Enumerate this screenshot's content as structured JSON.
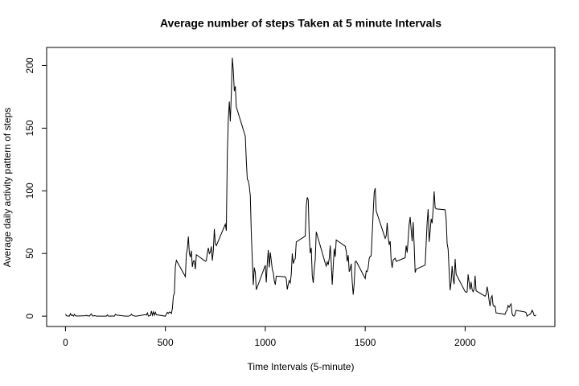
{
  "chart_data": {
    "type": "line",
    "title": "Average number of steps Taken at 5 minute Intervals",
    "x_label": "Time Intervals (5-minute)",
    "y_label": "Average daily activity pattern of steps",
    "color": "#000000",
    "xlim": [
      -94.2,
      2449.2
    ],
    "xticks": [
      0,
      500,
      1000,
      1500,
      2000
    ],
    "ylim": [
      -8.25,
      214.4
    ],
    "yticks": [
      0,
      50,
      100,
      150,
      200
    ],
    "x": [
      0,
      5,
      10,
      15,
      20,
      25,
      30,
      35,
      40,
      45,
      50,
      55,
      100,
      105,
      110,
      115,
      120,
      125,
      130,
      135,
      140,
      145,
      150,
      155,
      200,
      205,
      210,
      215,
      220,
      225,
      230,
      235,
      240,
      245,
      250,
      255,
      300,
      305,
      310,
      315,
      320,
      325,
      330,
      335,
      340,
      345,
      350,
      355,
      400,
      405,
      410,
      415,
      420,
      425,
      430,
      435,
      440,
      445,
      450,
      455,
      500,
      505,
      510,
      515,
      520,
      525,
      530,
      535,
      540,
      545,
      550,
      555,
      600,
      605,
      610,
      615,
      620,
      625,
      630,
      635,
      640,
      645,
      650,
      655,
      700,
      705,
      710,
      715,
      720,
      725,
      730,
      735,
      740,
      745,
      750,
      755,
      800,
      805,
      810,
      815,
      820,
      825,
      830,
      835,
      840,
      845,
      850,
      855,
      900,
      905,
      910,
      915,
      920,
      925,
      930,
      935,
      940,
      945,
      950,
      955,
      1000,
      1005,
      1010,
      1015,
      1020,
      1025,
      1030,
      1035,
      1040,
      1045,
      1050,
      1055,
      1100,
      1105,
      1110,
      1115,
      1120,
      1125,
      1130,
      1135,
      1140,
      1145,
      1150,
      1155,
      1200,
      1205,
      1210,
      1215,
      1220,
      1225,
      1230,
      1235,
      1240,
      1245,
      1250,
      1255,
      1300,
      1305,
      1310,
      1315,
      1320,
      1325,
      1330,
      1335,
      1340,
      1345,
      1350,
      1355,
      1400,
      1405,
      1410,
      1415,
      1420,
      1425,
      1430,
      1435,
      1440,
      1445,
      1450,
      1455,
      1500,
      1505,
      1510,
      1515,
      1520,
      1525,
      1530,
      1535,
      1540,
      1545,
      1550,
      1555,
      1600,
      1605,
      1610,
      1615,
      1620,
      1625,
      1630,
      1635,
      1640,
      1645,
      1650,
      1655,
      1700,
      1705,
      1710,
      1715,
      1720,
      1725,
      1730,
      1735,
      1740,
      1745,
      1750,
      1755,
      1800,
      1805,
      1810,
      1815,
      1820,
      1825,
      1830,
      1835,
      1840,
      1845,
      1850,
      1855,
      1900,
      1905,
      1910,
      1915,
      1920,
      1925,
      1930,
      1935,
      1940,
      1945,
      1950,
      1955,
      2000,
      2005,
      2010,
      2015,
      2020,
      2025,
      2030,
      2035,
      2040,
      2045,
      2050,
      2055,
      2100,
      2105,
      2110,
      2115,
      2120,
      2125,
      2130,
      2135,
      2140,
      2145,
      2150,
      2155,
      2200,
      2205,
      2210,
      2215,
      2220,
      2225,
      2230,
      2235,
      2240,
      2245,
      2250,
      2255,
      2300,
      2305,
      2310,
      2315,
      2320,
      2325,
      2330,
      2335,
      2340,
      2345,
      2350,
      2355
    ],
    "values": [
      1.7,
      0.3,
      0.1,
      0.2,
      0.1,
      2.1,
      0.5,
      0.9,
      0,
      1.5,
      0.3,
      0.1,
      0.3,
      0.7,
      0.2,
      0.3,
      0,
      1.1,
      1.8,
      0.2,
      0.2,
      0.4,
      0.3,
      0,
      0,
      0,
      1.1,
      0,
      0,
      0.1,
      0,
      0.2,
      0,
      0,
      1.5,
      0.9,
      0,
      0,
      0,
      0,
      0.2,
      0.6,
      1.6,
      0.6,
      0.5,
      0.1,
      0,
      0,
      1.2,
      0.9,
      2.6,
      0,
      0.3,
      0.4,
      4.1,
      0.7,
      3.5,
      0.8,
      3.1,
      1.1,
      0,
      1.6,
      3,
      2.2,
      3.3,
      3,
      2.1,
      6.1,
      16,
      18.3,
      39.5,
      44.5,
      31.5,
      49.3,
      53.8,
      63.5,
      50,
      47.1,
      52.2,
      39.3,
      44,
      44.2,
      37.4,
      49,
      43.8,
      44.4,
      50.5,
      54.5,
      49.9,
      51,
      55.7,
      44.3,
      52.3,
      69.5,
      57.8,
      56.2,
      73.4,
      68.2,
      129.4,
      157.5,
      171.2,
      155.4,
      177.3,
      206.2,
      195.9,
      179.6,
      183.4,
      167,
      143.5,
      124,
      109.1,
      108.1,
      103.7,
      95.9,
      66.2,
      45.2,
      24.8,
      38.8,
      35,
      21.1,
      40.6,
      26.9,
      42.4,
      52.7,
      38.9,
      50.8,
      44.3,
      37.4,
      34.7,
      28.3,
      25.1,
      31.9,
      31.4,
      29.7,
      21.3,
      25.5,
      28.4,
      26.5,
      33.4,
      50,
      42,
      44.6,
      46,
      59.2,
      63.9,
      87.7,
      94.8,
      92.8,
      63.4,
      50.2,
      54.5,
      32.4,
      26.5,
      37.7,
      45.1,
      67.3,
      42.3,
      39.9,
      43.3,
      41,
      46.2,
      56.4,
      42.8,
      25.1,
      40,
      53.8,
      47.4,
      60.8,
      55.8,
      52,
      43.6,
      48.7,
      35.5,
      37.5,
      41.8,
      27.5,
      17.1,
      26.1,
      43.6,
      43.8,
      30,
      36.1,
      35.5,
      38.8,
      46,
      47.8,
      48.1,
      65.3,
      82.9,
      98.7,
      102.1,
      84,
      62.1,
      64.1,
      74.5,
      63.2,
      56.9,
      59.8,
      43.9,
      38.6,
      44.7,
      45.5,
      46.2,
      43.7,
      46.6,
      56.3,
      50.7,
      61.2,
      73.4,
      79.1,
      68.9,
      59.7,
      75.1,
      56.5,
      34.8,
      37.5,
      40.7,
      58,
      74.7,
      85.3,
      59.3,
      67.8,
      77.7,
      74.2,
      85.3,
      99.5,
      86.6,
      85.6,
      84.9,
      77.8,
      58,
      53.4,
      36.3,
      20.7,
      27.4,
      40,
      30.2,
      25.5,
      45.7,
      33.5,
      19.6,
      19,
      19.3,
      33.3,
      26.8,
      21.2,
      27.3,
      21.3,
      19.5,
      21.3,
      32.3,
      20.2,
      15.9,
      17.2,
      23.5,
      19.2,
      12.5,
      8,
      14.7,
      16.3,
      8.7,
      7.8,
      8.1,
      2.6,
      1.5,
      3.7,
      4.8,
      8.5,
      7.1,
      8.7,
      9.8,
      2.2,
      0.3,
      0.1,
      1.6,
      4.6,
      3.3,
      2.8,
      0,
      0.8,
      1,
      1.6,
      2.6,
      4.7,
      3.3,
      0.6,
      0.2,
      1.1
    ]
  }
}
